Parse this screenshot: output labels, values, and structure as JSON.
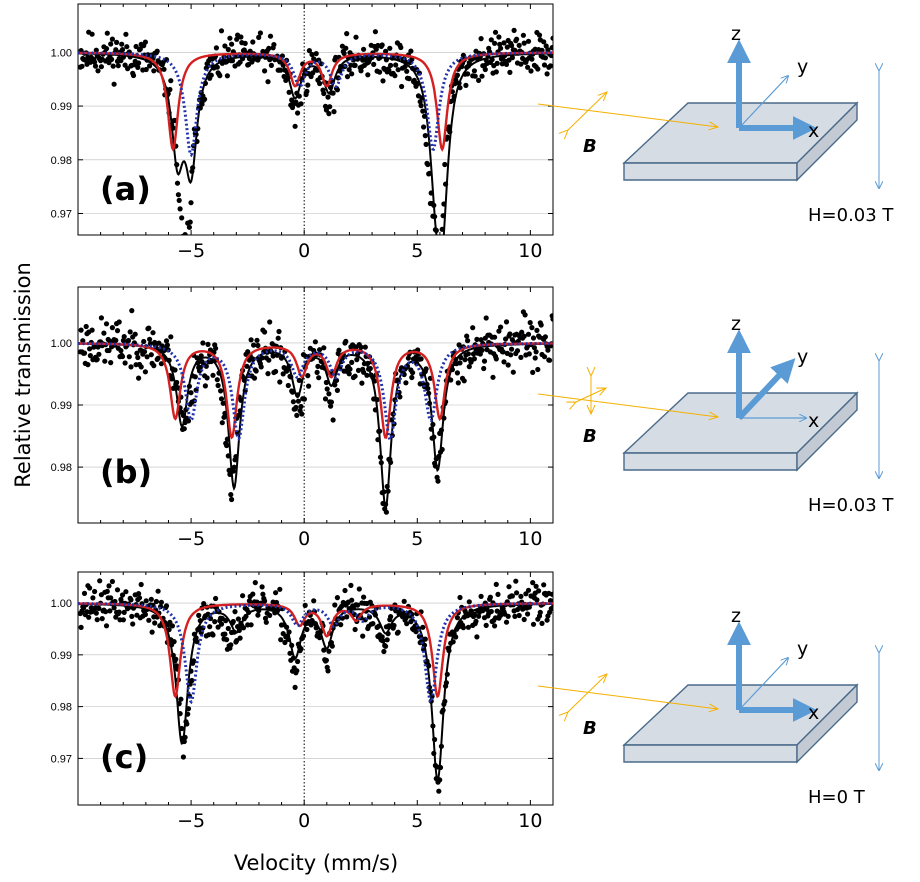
{
  "figure": {
    "ylabel": "Relative transmission",
    "xlabel": "Velocity (mm/s)"
  },
  "colors": {
    "data_points": "#000000",
    "total_fit": "#000000",
    "component_red": "#d42020",
    "component_blue": "#2233aa",
    "arrow_blue": "#5b9bd5",
    "arrow_orange": "#f5b000",
    "slab_fill": "#d6dce4",
    "slab_stroke": "#4a6a8a"
  },
  "chart_data": [
    {
      "type": "scatter",
      "panel": "(a)",
      "xlim": [
        -10,
        11
      ],
      "ylim": [
        0.966,
        1.009
      ],
      "xticks": [
        "−5",
        "0",
        "5",
        "10"
      ],
      "yticks": [
        "1.00",
        "0.99",
        "0.98",
        "0.97"
      ],
      "xtick_values": [
        -5,
        0,
        5,
        10
      ],
      "ytick_values": [
        1.0,
        0.99,
        0.98,
        0.97
      ],
      "vertical_zero_line": true,
      "series": [
        {
          "kind": "points",
          "peaks": [
            [
              -5.4,
              0.025
            ],
            [
              -5.1,
              0.02
            ],
            [
              -0.4,
              0.01
            ],
            [
              1.1,
              0.008
            ],
            [
              5.6,
              0.015
            ],
            [
              6.0,
              0.032
            ]
          ],
          "noise": 0.0025,
          "count": 560,
          "seed": 11
        },
        {
          "kind": "total_fit",
          "peaks": [
            [
              -5.6,
              0.018
            ],
            [
              -5.0,
              0.02
            ],
            [
              -0.4,
              0.008
            ],
            [
              1.1,
              0.007
            ],
            [
              5.8,
              0.017
            ],
            [
              6.1,
              0.028
            ]
          ],
          "width": 0.32
        },
        {
          "kind": "component_red",
          "peaks": [
            [
              -5.8,
              0.018
            ],
            [
              -0.4,
              0.006
            ],
            [
              1.0,
              0.006
            ],
            [
              6.1,
              0.018
            ]
          ],
          "width": 0.28
        },
        {
          "kind": "component_blue",
          "peaks": [
            [
              -5.0,
              0.019
            ],
            [
              -0.2,
              0.006
            ],
            [
              1.4,
              0.006
            ],
            [
              5.7,
              0.018
            ]
          ],
          "width": 0.32
        }
      ]
    },
    {
      "type": "scatter",
      "panel": "(b)",
      "xlim": [
        -10,
        11
      ],
      "ylim": [
        0.971,
        1.009
      ],
      "xticks": [
        "−5",
        "0",
        "5",
        "10"
      ],
      "yticks": [
        "1.00",
        "0.99",
        "0.98"
      ],
      "xtick_values": [
        -5,
        0,
        5,
        10
      ],
      "ytick_values": [
        1.0,
        0.99,
        0.98
      ],
      "vertical_zero_line": true,
      "series": [
        {
          "kind": "points",
          "peaks": [
            [
              -5.3,
              0.013
            ],
            [
              -3.2,
              0.023
            ],
            [
              -0.3,
              0.01
            ],
            [
              1.2,
              0.008
            ],
            [
              3.6,
              0.026
            ],
            [
              5.9,
              0.02
            ]
          ],
          "noise": 0.0025,
          "count": 560,
          "seed": 23
        },
        {
          "kind": "total_fit",
          "peaks": [
            [
              -5.4,
              0.013
            ],
            [
              -3.1,
              0.023
            ],
            [
              -0.3,
              0.008
            ],
            [
              1.2,
              0.006
            ],
            [
              3.6,
              0.026
            ],
            [
              5.9,
              0.02
            ]
          ],
          "width": 0.3
        },
        {
          "kind": "component_red",
          "peaks": [
            [
              -5.7,
              0.012
            ],
            [
              -3.2,
              0.015
            ],
            [
              -0.1,
              0.005
            ],
            [
              1.2,
              0.005
            ],
            [
              3.6,
              0.015
            ],
            [
              6.0,
              0.012
            ]
          ],
          "width": 0.28
        },
        {
          "kind": "component_blue",
          "peaks": [
            [
              -5.0,
              0.012
            ],
            [
              -2.9,
              0.015
            ],
            [
              -0.3,
              0.005
            ],
            [
              1.4,
              0.005
            ],
            [
              3.8,
              0.015
            ],
            [
              5.6,
              0.012
            ]
          ],
          "width": 0.32
        }
      ]
    },
    {
      "type": "scatter",
      "panel": "(c)",
      "xlim": [
        -10,
        11
      ],
      "ylim": [
        0.961,
        1.006
      ],
      "xticks": [
        "−5",
        "0",
        "5",
        "10"
      ],
      "yticks": [
        "1.00",
        "0.99",
        "0.98",
        "0.97"
      ],
      "xtick_values": [
        -5,
        0,
        5,
        10
      ],
      "ytick_values": [
        1.0,
        0.99,
        0.98,
        0.97
      ],
      "vertical_zero_line": true,
      "series": [
        {
          "kind": "points",
          "peaks": [
            [
              -5.3,
              0.028
            ],
            [
              -3.2,
              0.006
            ],
            [
              -0.4,
              0.012
            ],
            [
              1.0,
              0.009
            ],
            [
              3.6,
              0.006
            ],
            [
              5.9,
              0.035
            ]
          ],
          "noise": 0.0025,
          "count": 560,
          "seed": 37
        },
        {
          "kind": "total_fit",
          "peaks": [
            [
              -5.4,
              0.027
            ],
            [
              -3.0,
              0.005
            ],
            [
              -0.4,
              0.01
            ],
            [
              1.0,
              0.008
            ],
            [
              3.6,
              0.005
            ],
            [
              5.9,
              0.034
            ]
          ],
          "width": 0.32
        },
        {
          "kind": "component_red",
          "peaks": [
            [
              -5.7,
              0.018
            ],
            [
              -0.2,
              0.004
            ],
            [
              1.0,
              0.006
            ],
            [
              2.3,
              0.003
            ],
            [
              5.9,
              0.018
            ]
          ],
          "width": 0.28
        },
        {
          "kind": "component_blue",
          "peaks": [
            [
              -5.0,
              0.019
            ],
            [
              -0.3,
              0.004
            ],
            [
              1.3,
              0.004
            ],
            [
              2.6,
              0.003
            ],
            [
              5.6,
              0.019
            ]
          ],
          "width": 0.32
        }
      ]
    }
  ],
  "diagrams": [
    {
      "panel": "(a)",
      "axes": {
        "z": "z",
        "y": "y",
        "x": "x"
      },
      "field": "H=0.03 T",
      "b_label": "B",
      "b_orientation": "diagonal",
      "bold_axes": [
        "z",
        "x"
      ]
    },
    {
      "panel": "(b)",
      "axes": {
        "z": "z",
        "y": "y",
        "x": "x"
      },
      "field": "H=0.03 T",
      "b_label": "B",
      "b_orientation": "cross",
      "bold_axes": [
        "z",
        "y"
      ]
    },
    {
      "panel": "(c)",
      "axes": {
        "z": "z",
        "y": "y",
        "x": "x"
      },
      "field": "H=0 T",
      "b_label": "B",
      "b_orientation": "diagonal",
      "bold_axes": [
        "z",
        "x"
      ]
    }
  ]
}
